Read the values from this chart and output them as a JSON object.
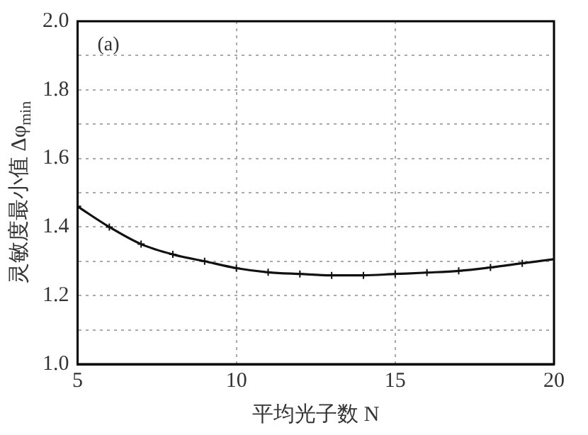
{
  "chart_data": {
    "type": "line",
    "xlabel": "平均光子数 N",
    "ylabel": "灵敏度最小值 Δφ$_{min}$",
    "annotations": [
      "(a)"
    ],
    "x": [
      5,
      6,
      7,
      8,
      9,
      10,
      11,
      12,
      13,
      14,
      15,
      16,
      17,
      18,
      19,
      20
    ],
    "series": [
      {
        "color": "#111111",
        "values": [
          1.46,
          1.4,
          1.35,
          1.32,
          1.3,
          1.28,
          1.268,
          1.263,
          1.259,
          1.259,
          1.263,
          1.267,
          1.272,
          1.282,
          1.294,
          1.306
        ]
      }
    ],
    "xlim": [
      5,
      20
    ],
    "xticks": [
      5,
      10,
      15,
      20
    ],
    "ylim": [
      1.0,
      2.0
    ],
    "yticks": [
      {
        "value": 1.0,
        "label": "1.0"
      },
      {
        "value": 1.1,
        "label": null
      },
      1.2,
      {
        "value": 1.3,
        "label": null
      },
      1.4,
      {
        "value": 1.5,
        "label": null
      },
      1.6,
      {
        "value": 1.7,
        "label": null
      },
      1.8,
      {
        "value": 1.9,
        "label": null
      },
      {
        "value": 2.0,
        "label": "2.0"
      }
    ],
    "grid": true,
    "legend": false,
    "marker": "cross",
    "line_style": "solid"
  }
}
